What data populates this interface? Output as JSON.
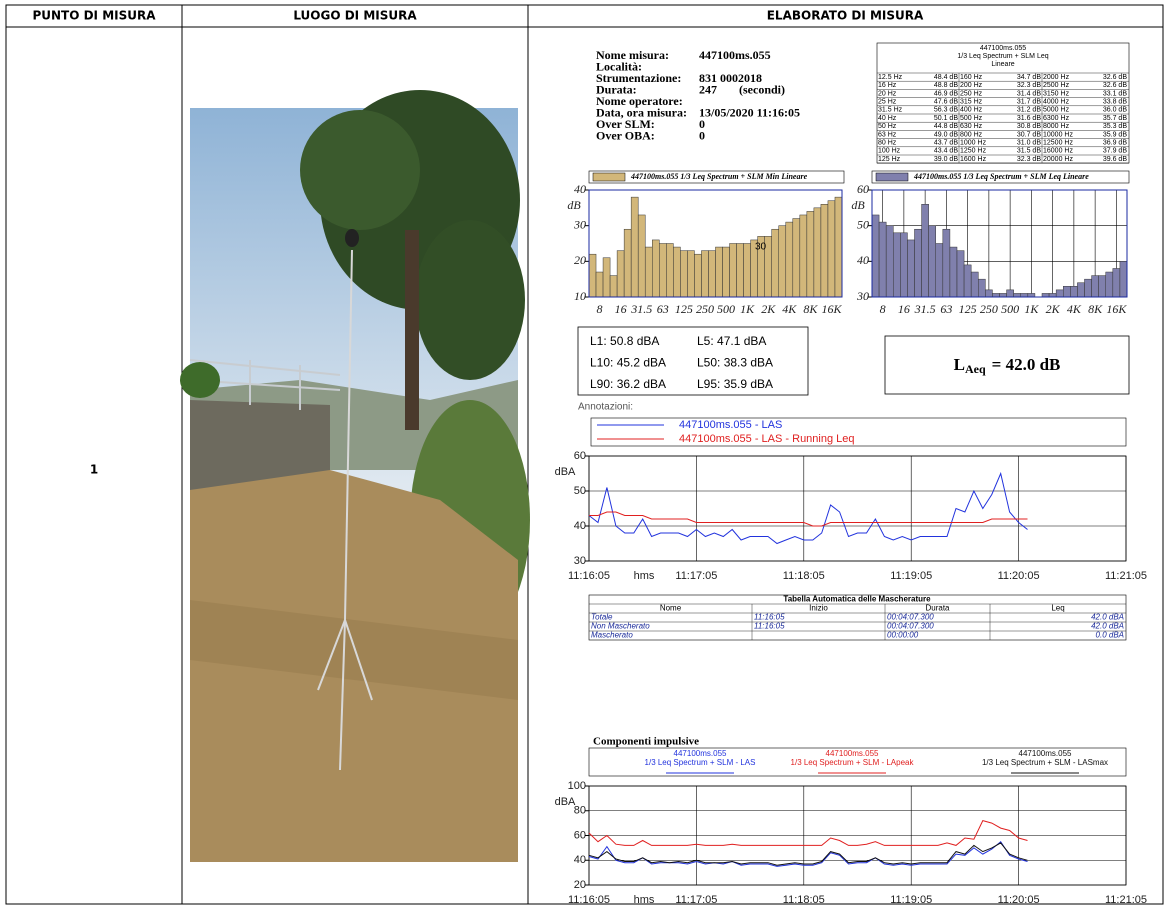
{
  "header": {
    "columns": [
      "PUNTO DI MISURA",
      "LUOGO DI MISURA",
      "ELABORATO DI MISURA"
    ]
  },
  "point": "1",
  "info": [
    {
      "label": "Nome misura:",
      "value": "447100ms.055"
    },
    {
      "label": "Località:"
    },
    {
      "label": "Strumentazione:",
      "value": "831 0002018"
    },
    {
      "label": "Durata:",
      "value": "247",
      "unit": "(secondi)"
    },
    {
      "label": "Nome operatore:"
    },
    {
      "label": "Data, ora misura:",
      "value": "13/05/2020 11:16:05"
    },
    {
      "label": "Over SLM:",
      "value": "0"
    },
    {
      "label": "Over OBA:",
      "value": "0"
    }
  ],
  "spectrum_table": {
    "title": [
      "447100ms.055",
      "1/3 Leq Spectrum + SLM Leq",
      "Lineare"
    ],
    "rows": [
      [
        "12.5 Hz",
        "48.4 dB"
      ],
      [
        "16 Hz",
        "48.8 dB"
      ],
      [
        "20 Hz",
        "46.9 dB"
      ],
      [
        "25 Hz",
        "47.6 dB"
      ],
      [
        "31.5 Hz",
        "56.3 dB"
      ],
      [
        "40 Hz",
        "50.1 dB"
      ],
      [
        "50 Hz",
        "44.8 dB"
      ],
      [
        "63 Hz",
        "49.0 dB"
      ],
      [
        "80 Hz",
        "43.7 dB"
      ],
      [
        "100 Hz",
        "43.4 dB"
      ],
      [
        "125 Hz",
        "39.0 dB"
      ],
      [
        "160 Hz",
        "34.7 dB"
      ],
      [
        "200 Hz",
        "32.3 dB"
      ],
      [
        "250 Hz",
        "31.4 dB"
      ],
      [
        "315 Hz",
        "31.7 dB"
      ],
      [
        "400 Hz",
        "31.2 dB"
      ],
      [
        "500 Hz",
        "31.6 dB"
      ],
      [
        "630 Hz",
        "30.8 dB"
      ],
      [
        "800 Hz",
        "30.7 dB"
      ],
      [
        "1000 Hz",
        "31.0 dB"
      ],
      [
        "1250 Hz",
        "31.5 dB"
      ],
      [
        "1600 Hz",
        "32.3 dB"
      ],
      [
        "2000 Hz",
        "32.6 dB"
      ],
      [
        "2500 Hz",
        "32.6 dB"
      ],
      [
        "3150 Hz",
        "33.1 dB"
      ],
      [
        "4000 Hz",
        "33.8 dB"
      ],
      [
        "5000 Hz",
        "36.0 dB"
      ],
      [
        "6300 Hz",
        "35.7 dB"
      ],
      [
        "8000 Hz",
        "35.3 dB"
      ],
      [
        "10000 Hz",
        "35.9 dB"
      ],
      [
        "12500 Hz",
        "36.9 dB"
      ],
      [
        "16000 Hz",
        "37.9 dB"
      ],
      [
        "20000 Hz",
        "39.6 dB"
      ]
    ]
  },
  "percentiles": [
    "L1: 50.8 dBA",
    "L5: 47.1 dBA",
    "L10: 45.2 dBA",
    "L50: 38.3 dBA",
    "L90: 36.2 dBA",
    "L95: 35.9 dBA"
  ],
  "laeq": {
    "symbol": "L",
    "subscript": "Aeq",
    "value": "= 42.0 dB"
  },
  "annotations_label": "Annotazioni:",
  "mask_table": {
    "title": "Tabella Automatica delle Mascherature",
    "columns": [
      "Nome",
      "Inizio",
      "Durata",
      "Leq"
    ],
    "rows": [
      [
        "Totale",
        "11:16:05",
        "00:04:07.300",
        "42.0 dBA"
      ],
      [
        "Non Mascherato",
        "11:16:05",
        "00:04:07.300",
        "42.0 dBA"
      ],
      [
        "Mascherato",
        null,
        "00:00:00",
        "0.0 dBA"
      ]
    ]
  },
  "impulse_title": "Componenti impulsive",
  "chart_data": [
    {
      "type": "bar",
      "y_label": "dB",
      "annotation": "30",
      "categories": [
        null,
        "8",
        null,
        null,
        "16",
        null,
        null,
        "31.5",
        null,
        null,
        "63",
        null,
        null,
        "125",
        null,
        null,
        "250",
        null,
        null,
        "500",
        null,
        null,
        "1K",
        null,
        null,
        "2K",
        null,
        null,
        "4K",
        null,
        null,
        "8K",
        null,
        null,
        "16K",
        null
      ],
      "series": [
        {
          "name": "447100ms.055 1/3 Leq Spectrum + SLM Min Lineare",
          "color": "#d2b77a",
          "values": [
            22,
            17,
            21,
            16,
            23,
            29,
            38,
            33,
            24,
            26,
            25,
            25,
            24,
            23,
            23,
            22,
            23,
            23,
            24,
            24,
            25,
            25,
            25,
            26,
            27,
            27,
            29,
            30,
            31,
            32,
            33,
            34,
            35,
            36,
            37,
            38
          ]
        }
      ],
      "ylim": [
        10,
        40
      ],
      "yticks": [
        10,
        20,
        30,
        40
      ],
      "grid": false
    },
    {
      "type": "bar",
      "y_label": "dB",
      "categories": [
        null,
        "8",
        null,
        null,
        "16",
        null,
        null,
        "31.5",
        null,
        null,
        "63",
        null,
        null,
        "125",
        null,
        null,
        "250",
        null,
        null,
        "500",
        null,
        null,
        "1K",
        null,
        null,
        "2K",
        null,
        null,
        "4K",
        null,
        null,
        "8K",
        null,
        null,
        "16K",
        null
      ],
      "series": [
        {
          "name": "447100ms.055 1/3 Leq Spectrum + SLM Leq Lineare",
          "color": "#8080ad",
          "values": [
            53,
            51,
            50,
            48,
            48,
            46,
            49,
            56,
            50,
            45,
            49,
            44,
            43,
            39,
            37,
            35,
            32,
            31,
            31,
            32,
            31,
            31,
            31,
            30,
            31,
            31,
            32,
            33,
            33,
            34,
            35,
            36,
            36,
            37,
            38,
            40
          ]
        }
      ],
      "ylim": [
        30,
        60
      ],
      "yticks": [
        30,
        40,
        50,
        60
      ],
      "grid": true
    },
    {
      "type": "line",
      "y_label": "dBA",
      "x_label": "hms",
      "x": [
        0,
        5,
        10,
        15,
        20,
        25,
        30,
        35,
        40,
        45,
        50,
        55,
        60,
        65,
        70,
        75,
        80,
        85,
        90,
        95,
        100,
        105,
        110,
        115,
        120,
        125,
        130,
        135,
        140,
        145,
        150,
        155,
        160,
        165,
        170,
        175,
        180,
        185,
        190,
        195,
        200,
        205,
        210,
        215,
        220,
        225,
        230,
        235,
        240,
        245
      ],
      "series": [
        {
          "name": "447100ms.055 - LAS",
          "color": "#2233dd",
          "values": [
            43,
            41,
            51,
            40,
            38,
            38,
            42,
            37,
            38,
            38,
            38,
            37,
            39,
            37,
            38,
            37,
            39,
            36,
            37,
            37,
            37,
            35,
            36,
            37,
            36,
            36,
            38,
            46,
            44,
            37,
            38,
            38,
            42,
            37,
            36,
            37,
            36,
            37,
            37,
            37,
            37,
            45,
            44,
            50,
            45,
            49,
            55,
            44,
            41,
            39
          ]
        },
        {
          "name": "447100ms.055 - LAS - Running Leq",
          "color": "#e02020",
          "values": [
            43,
            43,
            44,
            44,
            43,
            43,
            43,
            42,
            42,
            42,
            42,
            42,
            41,
            41,
            41,
            41,
            41,
            41,
            41,
            41,
            41,
            41,
            41,
            41,
            41,
            40,
            40,
            41,
            41,
            41,
            41,
            41,
            41,
            41,
            41,
            41,
            41,
            41,
            41,
            41,
            41,
            41,
            41,
            41,
            41,
            42,
            42,
            42,
            42,
            42
          ]
        }
      ],
      "xlim": [
        0,
        300
      ],
      "xticks": [
        {
          "value": 0,
          "label": "11:16:05"
        },
        {
          "value": 60,
          "label": "11:17:05"
        },
        {
          "value": 120,
          "label": "11:18:05"
        },
        {
          "value": 180,
          "label": "11:19:05"
        },
        {
          "value": 240,
          "label": "11:20:05"
        },
        {
          "value": 300,
          "label": "11:21:05"
        }
      ],
      "ylim": [
        30,
        60
      ],
      "yticks": [
        30,
        40,
        50,
        60
      ],
      "grid": true
    },
    {
      "type": "line",
      "y_label": "dBA",
      "x_label": "hms",
      "x": [
        0,
        5,
        10,
        15,
        20,
        25,
        30,
        35,
        40,
        45,
        50,
        55,
        60,
        65,
        70,
        75,
        80,
        85,
        90,
        95,
        100,
        105,
        110,
        115,
        120,
        125,
        130,
        135,
        140,
        145,
        150,
        155,
        160,
        165,
        170,
        175,
        180,
        185,
        190,
        195,
        200,
        205,
        210,
        215,
        220,
        225,
        230,
        235,
        240,
        245
      ],
      "series": [
        {
          "file": "447100ms.055",
          "name": "1/3 Leq Spectrum + SLM - LAS",
          "color": "#2233dd",
          "values": [
            43,
            41,
            51,
            40,
            38,
            38,
            42,
            37,
            38,
            38,
            38,
            37,
            39,
            37,
            38,
            37,
            39,
            36,
            37,
            37,
            37,
            35,
            36,
            37,
            36,
            36,
            38,
            46,
            44,
            37,
            38,
            38,
            42,
            37,
            36,
            37,
            36,
            37,
            37,
            37,
            37,
            45,
            44,
            50,
            45,
            49,
            55,
            44,
            41,
            39
          ]
        },
        {
          "file": "447100ms.055",
          "name": "1/3 Leq Spectrum + SLM - LApeak",
          "color": "#e02020",
          "values": [
            62,
            55,
            60,
            53,
            52,
            52,
            56,
            52,
            52,
            52,
            52,
            52,
            53,
            52,
            52,
            52,
            53,
            52,
            52,
            52,
            52,
            52,
            52,
            52,
            52,
            52,
            52,
            58,
            56,
            52,
            52,
            53,
            55,
            52,
            52,
            52,
            52,
            52,
            52,
            52,
            54,
            52,
            58,
            57,
            72,
            70,
            66,
            64,
            58,
            56
          ]
        },
        {
          "file": "447100ms.055",
          "name": "1/3 Leq Spectrum + SLM - LASmax",
          "color": "#111111",
          "values": [
            44,
            42,
            47,
            41,
            39,
            39,
            42,
            38,
            39,
            38,
            39,
            38,
            40,
            38,
            38,
            38,
            39,
            37,
            38,
            38,
            38,
            36,
            37,
            38,
            37,
            37,
            39,
            47,
            45,
            38,
            39,
            39,
            42,
            38,
            37,
            38,
            37,
            38,
            38,
            38,
            38,
            47,
            45,
            52,
            47,
            50,
            54,
            45,
            42,
            40
          ]
        }
      ],
      "xlim": [
        0,
        300
      ],
      "xticks": [
        {
          "value": 0,
          "label": "11:16:05"
        },
        {
          "value": 60,
          "label": "11:17:05"
        },
        {
          "value": 120,
          "label": "11:18:05"
        },
        {
          "value": 180,
          "label": "11:19:05"
        },
        {
          "value": 240,
          "label": "11:20:05"
        },
        {
          "value": 300,
          "label": "11:21:05"
        }
      ],
      "ylim": [
        20,
        100
      ],
      "yticks": [
        20,
        40,
        60,
        80,
        100
      ],
      "grid": true
    }
  ]
}
